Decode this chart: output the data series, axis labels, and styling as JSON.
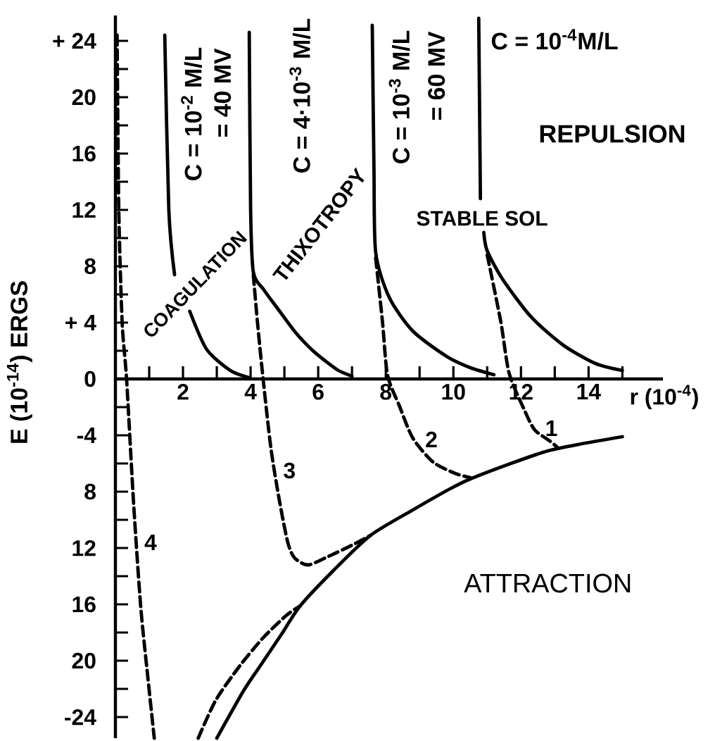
{
  "chart_data": {
    "type": "line",
    "xlabel": "r (10$^{-4}$)",
    "ylabel": "E (10$^{-14}$) ERGS",
    "xlim": [
      0,
      16.2
    ],
    "ylim": [
      -25.5,
      25.8
    ],
    "xticks": [
      {
        "value": 1,
        "label": null
      },
      2,
      {
        "value": 3,
        "label": null
      },
      4,
      {
        "value": 5,
        "label": null
      },
      6,
      {
        "value": 7,
        "label": null
      },
      8,
      {
        "value": 9,
        "label": null
      },
      10,
      {
        "value": 11,
        "label": null
      },
      12,
      {
        "value": 13,
        "label": null
      },
      14,
      {
        "value": 15,
        "label": null
      }
    ],
    "yticks": [
      -24,
      {
        "value": -22,
        "label": null
      },
      {
        "value": -20,
        "label": "20"
      },
      {
        "value": -18,
        "label": null
      },
      {
        "value": -16,
        "label": "16"
      },
      {
        "value": -14,
        "label": null
      },
      {
        "value": -12,
        "label": "12"
      },
      {
        "value": -10,
        "label": null
      },
      {
        "value": -8,
        "label": "8"
      },
      {
        "value": -6,
        "label": null
      },
      -4,
      {
        "value": -2,
        "label": null
      },
      0,
      {
        "value": 2,
        "label": null
      },
      {
        "value": 4,
        "label": "+ 4"
      },
      {
        "value": 6,
        "label": null
      },
      8,
      {
        "value": 10,
        "label": null
      },
      12,
      {
        "value": 14,
        "label": null
      },
      16,
      {
        "value": 18,
        "label": null
      },
      20,
      {
        "value": 22,
        "label": null
      },
      {
        "value": 24,
        "label": "+ 24"
      }
    ],
    "series": [
      {
        "color": "#000000",
        "line_style": "solid",
        "x": [
          1.46,
          1.58,
          1.75,
          2.0,
          2.2,
          2.7,
          3.4,
          3.95
        ],
        "values": [
          24.4,
          12,
          7.4,
          null,
          4.8,
          2.1,
          0.6,
          0.1
        ]
      },
      {
        "color": "#000000",
        "line_style": "solid",
        "x": [
          3.96,
          4.0,
          4.08,
          4.4,
          4.8,
          5.33,
          5.8,
          6.2,
          6.6,
          7.0
        ],
        "values": [
          24.6,
          12.1,
          7.6,
          6.3,
          5.0,
          3.3,
          2.1,
          1.3,
          0.6,
          0.2
        ]
      },
      {
        "color": "#000000",
        "line_style": "solid",
        "x": [
          7.6,
          7.65,
          7.7,
          8.1,
          8.8,
          9.8,
          10.5,
          11.2
        ],
        "values": [
          25.1,
          15,
          9.0,
          5.8,
          3.4,
          1.6,
          0.8,
          0.3
        ]
      },
      {
        "color": "#000000",
        "line_style": "solid",
        "x": [
          10.75,
          10.8,
          10.85,
          10.9,
          11.0,
          11.45,
          12.3,
          13.25,
          14.2,
          15.0
        ],
        "values": [
          25.6,
          12.8,
          null,
          10.4,
          9.1,
          7.1,
          4.4,
          2.4,
          1.1,
          0.6
        ]
      },
      {
        "color": "#000000",
        "line_style": "solid",
        "x": [
          3.0,
          3.8,
          4.36,
          4.92,
          5.47,
          6.45,
          7.55,
          8.8,
          9.9,
          10.5,
          11.7,
          12.8,
          13.8,
          15.0
        ],
        "values": [
          -25.5,
          -22.1,
          -20.1,
          -18.1,
          -16.1,
          -13.6,
          -11.1,
          -9.3,
          -7.8,
          -7.1,
          -6.0,
          -5.1,
          -4.6,
          -4.1
        ]
      },
      {
        "color": "#000000",
        "line_style": "dashed",
        "x": [
          2.45,
          2.97,
          3.67,
          4.36,
          5.05,
          5.47
        ],
        "values": [
          -25.5,
          -22.8,
          -20.4,
          -18.4,
          -16.8,
          -16.1
        ]
      },
      {
        "color": "#000000",
        "line_style": "dashed",
        "x": [
          0.05,
          0.1,
          0.2,
          0.33,
          0.54,
          0.75,
          0.96,
          1.15
        ],
        "values": [
          24.4,
          12,
          4,
          0,
          -8.9,
          -16.2,
          -21.2,
          -25.5
        ]
      },
      {
        "color": "#000000",
        "line_style": "dashed",
        "x": [
          4.08,
          4.2,
          4.37,
          4.6,
          4.85,
          5.1,
          5.3,
          5.7,
          6.3,
          7.0,
          7.55
        ],
        "values": [
          7.4,
          4.1,
          0,
          -4.9,
          -8.6,
          -11.6,
          -12.7,
          -13.2,
          -12.6,
          -11.8,
          -11.1
        ]
      },
      {
        "color": "#000000",
        "line_style": "dashed",
        "x": [
          7.7,
          7.9,
          8.05,
          8.4,
          8.8,
          9.4,
          10.05,
          10.5
        ],
        "values": [
          8.6,
          4.1,
          0.3,
          -1.9,
          -4.2,
          -5.9,
          -6.7,
          -7.0
        ]
      },
      {
        "color": "#000000",
        "line_style": "dashed",
        "x": [
          11.0,
          11.4,
          11.65,
          12.1,
          12.4,
          12.85,
          13.1
        ],
        "values": [
          8.8,
          4.1,
          0.4,
          -2.2,
          -3.6,
          -4.4,
          -4.9
        ]
      }
    ],
    "annotations": [
      "C = 10$^{-2}$ M/L",
      "= 40 MV",
      "C = 4·10$^{-3}$ M/L",
      "C = 10$^{-3}$ M/L",
      "= 60 MV",
      "C = 10$^{-4}$M/L",
      "REPULSION",
      "COAGULATION",
      "THIXOTROPY",
      "STABLE SOL",
      "ATTRACTION",
      "1",
      "2",
      "3",
      "4"
    ]
  }
}
